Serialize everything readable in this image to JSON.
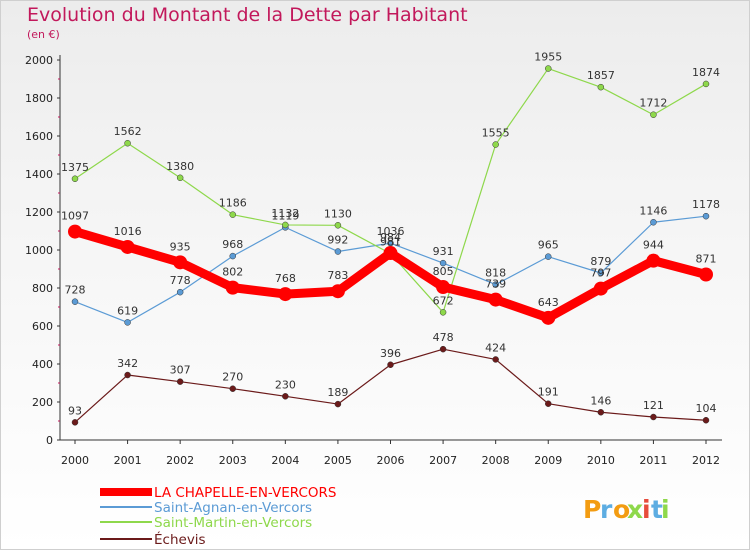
{
  "chart_data": {
    "type": "line",
    "title": "Evolution du Montant de la Dette par Habitant",
    "subtitle": "(en €)",
    "x": [
      "2000",
      "2001",
      "2002",
      "2003",
      "2004",
      "2005",
      "2006",
      "2007",
      "2008",
      "2009",
      "2010",
      "2011",
      "2012"
    ],
    "ylim": [
      0,
      2000
    ],
    "yticks": [
      0,
      200,
      400,
      600,
      800,
      1000,
      1200,
      1400,
      1600,
      1800,
      2000
    ],
    "grid": false,
    "legend_position": "bottom-left",
    "series": [
      {
        "name": "LA CHAPELLE-EN-VERCORS",
        "color": "#ff0000",
        "values": [
          1097,
          1016,
          935,
          802,
          768,
          783,
          984,
          805,
          739,
          643,
          797,
          944,
          871
        ]
      },
      {
        "name": "Saint-Agnan-en-Vercors",
        "color": "#5b9bd5",
        "values": [
          728,
          619,
          778,
          968,
          1119,
          992,
          1036,
          931,
          818,
          965,
          879,
          1146,
          1178
        ]
      },
      {
        "name": "Saint-Martin-en-Vercors",
        "color": "#8ed84b",
        "values": [
          1375,
          1562,
          1380,
          1186,
          1132,
          1130,
          981,
          672,
          1555,
          1955,
          1857,
          1712,
          1874
        ]
      },
      {
        "name": "Échevis",
        "color": "#6b1a1a",
        "values": [
          93,
          342,
          307,
          270,
          230,
          189,
          396,
          478,
          424,
          191,
          146,
          121,
          104
        ]
      }
    ]
  },
  "logo": {
    "text": "Proxiti"
  }
}
